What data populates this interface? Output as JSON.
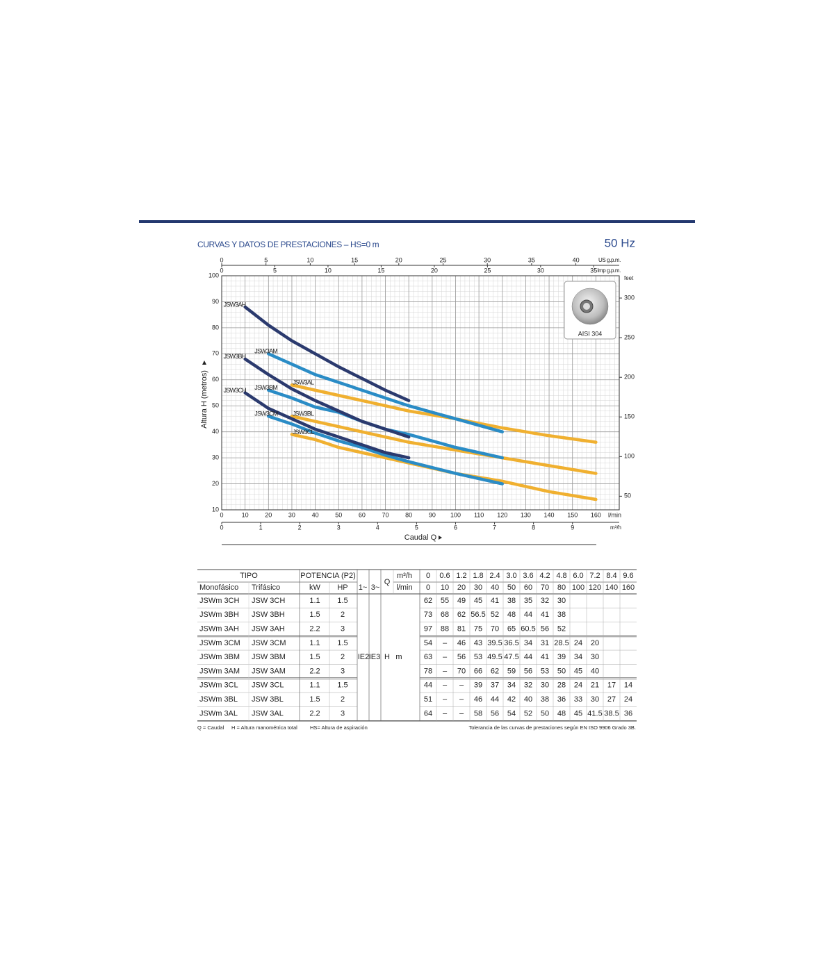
{
  "chart_data": {
    "type": "line",
    "title": "CURVAS Y DATOS DE PRESTACIONES – HS=0 m",
    "frequency": "50 Hz",
    "y_label": "Altura H (metros)",
    "x_label": "Caudal Q",
    "x_unit": "l/min",
    "xlim": [
      0,
      170
    ],
    "xticks": [
      0,
      10,
      20,
      30,
      40,
      50,
      60,
      70,
      80,
      90,
      100,
      110,
      120,
      130,
      140,
      150,
      160
    ],
    "ylim": [
      10,
      100
    ],
    "yticks": [
      10,
      20,
      30,
      40,
      50,
      60,
      70,
      80,
      90,
      100
    ],
    "grid": true,
    "top_axes": [
      {
        "unit": "US g.p.m.",
        "lim": [
          0,
          44.9
        ],
        "ticks": [
          0,
          5,
          10,
          15,
          20,
          25,
          30,
          35,
          40
        ]
      },
      {
        "unit": "Imp g.p.m.",
        "lim": [
          0,
          37.4
        ],
        "ticks": [
          0,
          5,
          10,
          15,
          20,
          25,
          30,
          35
        ]
      }
    ],
    "x2": {
      "unit": "m³/h",
      "lim": [
        0,
        10.2
      ],
      "ticks": [
        0,
        1,
        2,
        3,
        4,
        5,
        6,
        7,
        8,
        9
      ]
    },
    "y2": {
      "unit": "feet",
      "lim": [
        32.8,
        328.1
      ],
      "ticks": [
        50,
        100,
        150,
        200,
        250,
        300
      ]
    },
    "inset_label": "AISI 304",
    "series": [
      {
        "name": "JSW3AH",
        "color": "#2b3a6e",
        "x": [
          10,
          20,
          30,
          40,
          50,
          60,
          70,
          80
        ],
        "values": [
          88,
          81,
          75,
          70,
          65,
          60.5,
          56,
          52
        ]
      },
      {
        "name": "JSW3BH",
        "color": "#2b3a6e",
        "x": [
          10,
          20,
          30,
          40,
          50,
          60,
          70,
          80
        ],
        "values": [
          68,
          62,
          56.5,
          52,
          48,
          44,
          41,
          38
        ]
      },
      {
        "name": "JSW3CH",
        "color": "#2b3a6e",
        "x": [
          10,
          20,
          30,
          40,
          50,
          60,
          70,
          80
        ],
        "values": [
          55,
          49,
          45,
          41,
          38,
          35,
          32,
          30
        ]
      },
      {
        "name": "JSW3AM",
        "color": "#2a8cc6",
        "x": [
          20,
          30,
          40,
          50,
          60,
          70,
          80,
          100,
          120
        ],
        "values": [
          70,
          66,
          62,
          59,
          56,
          53,
          50,
          45,
          40
        ]
      },
      {
        "name": "JSW3BM",
        "color": "#2a8cc6",
        "x": [
          20,
          30,
          40,
          50,
          60,
          70,
          80,
          100,
          120
        ],
        "values": [
          56,
          53,
          49.5,
          47.5,
          44,
          41,
          39,
          34,
          30
        ]
      },
      {
        "name": "JSW3CM",
        "color": "#2a8cc6",
        "x": [
          20,
          30,
          40,
          50,
          60,
          70,
          80,
          100,
          120
        ],
        "values": [
          46,
          43,
          39.5,
          36.5,
          34,
          31,
          28.5,
          24,
          20
        ]
      },
      {
        "name": "JSW3AL",
        "color": "#f0b030",
        "x": [
          30,
          40,
          50,
          60,
          70,
          80,
          100,
          120,
          140,
          160
        ],
        "values": [
          58,
          56,
          54,
          52,
          50,
          48,
          45,
          41.5,
          38.5,
          36
        ]
      },
      {
        "name": "JSW3BL",
        "color": "#f0b030",
        "x": [
          30,
          40,
          50,
          60,
          70,
          80,
          100,
          120,
          140,
          160
        ],
        "values": [
          46,
          44,
          42,
          40,
          38,
          36,
          33,
          30,
          27,
          24
        ]
      },
      {
        "name": "JSW3CL",
        "color": "#f0b030",
        "x": [
          30,
          40,
          50,
          60,
          70,
          80,
          100,
          120,
          140,
          160
        ],
        "values": [
          39,
          37,
          34,
          32,
          30,
          28,
          24,
          21,
          17,
          14
        ]
      }
    ]
  },
  "table": {
    "headers": {
      "tipo": "TIPO",
      "potencia": "POTENCIA (P2)",
      "q": "Q",
      "q_m3h": "m³/h",
      "q_lmin": "l/min",
      "monofasico": "Monofásico",
      "trifasico": "Trifásico",
      "kw": "kW",
      "hp": "HP",
      "phase1": "1~",
      "phase3": "3~",
      "ie2": "IE2",
      "ie3": "IE3",
      "h": "H",
      "h_unit": "m"
    },
    "flow_m3h": [
      0,
      0.6,
      1.2,
      1.8,
      2.4,
      "3.0",
      3.6,
      4.2,
      4.8,
      "6.0",
      7.2,
      8.4,
      9.6
    ],
    "flow_lmin": [
      0,
      10,
      20,
      30,
      40,
      50,
      60,
      70,
      80,
      100,
      120,
      140,
      160
    ],
    "rows": [
      {
        "mono": "JSWm 3CH",
        "tri": "JSW 3CH",
        "kw": 1.1,
        "hp": 1.5,
        "values": [
          62,
          55,
          49,
          45,
          41,
          38,
          35,
          32,
          30,
          null,
          null,
          null,
          null
        ]
      },
      {
        "mono": "JSWm 3BH",
        "tri": "JSW 3BH",
        "kw": 1.5,
        "hp": 2,
        "values": [
          73,
          68,
          62,
          56.5,
          52,
          48,
          44,
          41,
          38,
          null,
          null,
          null,
          null
        ]
      },
      {
        "mono": "JSWm 3AH",
        "tri": "JSW 3AH",
        "kw": 2.2,
        "hp": 3,
        "values": [
          97,
          88,
          81,
          75,
          70,
          65,
          60.5,
          56,
          52,
          null,
          null,
          null,
          null
        ]
      },
      {
        "mono": "JSWm 3CM",
        "tri": "JSW 3CM",
        "kw": 1.1,
        "hp": 1.5,
        "values": [
          54,
          "–",
          46,
          43,
          39.5,
          36.5,
          34,
          31,
          28.5,
          24,
          20,
          null,
          null
        ]
      },
      {
        "mono": "JSWm 3BM",
        "tri": "JSW 3BM",
        "kw": 1.5,
        "hp": 2,
        "values": [
          63,
          "–",
          56,
          53,
          49.5,
          47.5,
          44,
          41,
          39,
          34,
          30,
          null,
          null
        ]
      },
      {
        "mono": "JSWm 3AM",
        "tri": "JSW 3AM",
        "kw": 2.2,
        "hp": 3,
        "values": [
          78,
          "–",
          70,
          66,
          62,
          59,
          56,
          53,
          50,
          45,
          40,
          null,
          null
        ]
      },
      {
        "mono": "JSWm 3CL",
        "tri": "JSW 3CL",
        "kw": 1.1,
        "hp": 1.5,
        "values": [
          44,
          "–",
          "–",
          39,
          37,
          34,
          32,
          30,
          28,
          24,
          21,
          17,
          14
        ]
      },
      {
        "mono": "JSWm 3BL",
        "tri": "JSW 3BL",
        "kw": 1.5,
        "hp": 2,
        "values": [
          51,
          "–",
          "–",
          46,
          44,
          42,
          40,
          38,
          36,
          33,
          30,
          27,
          24
        ]
      },
      {
        "mono": "JSWm 3AL",
        "tri": "JSW 3AL",
        "kw": 2.2,
        "hp": 3,
        "values": [
          64,
          "–",
          "–",
          58,
          56,
          54,
          52,
          50,
          48,
          45,
          41.5,
          38.5,
          36
        ]
      }
    ]
  },
  "notes": {
    "q": "Q = Caudal",
    "h": "H = Altura manométrica total",
    "hs": "HS= Altura de aspiración",
    "tolerance": "Tolerancia de las curvas de prestaciones según EN ISO 9906 Grado 3B."
  }
}
